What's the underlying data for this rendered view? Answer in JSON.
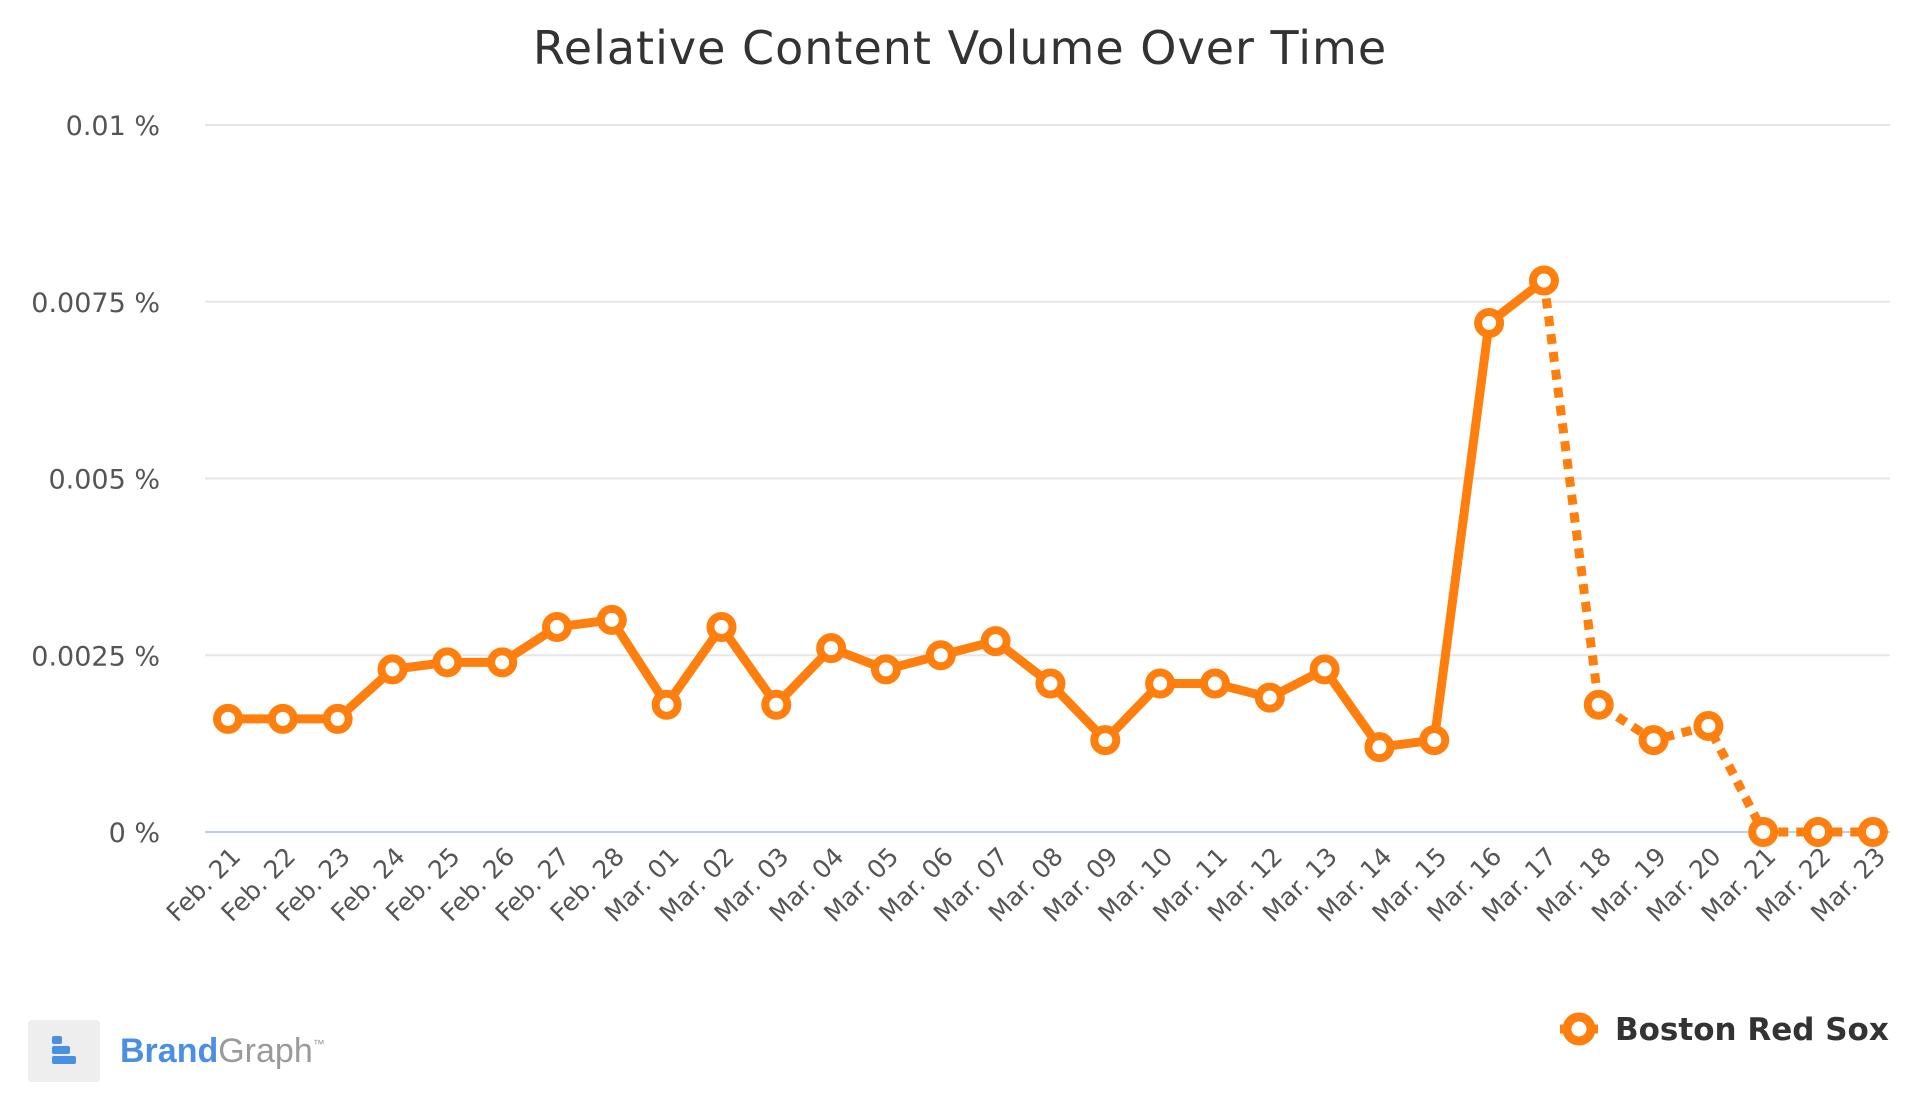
{
  "colors": {
    "series": "#ff7f0e",
    "grid": "#e6e6e6",
    "baseline": "#c0d0e0",
    "brand_blue": "#4a90e2",
    "brand_gray": "#9a9a9a"
  },
  "brand": {
    "name_part1": "Brand",
    "name_part2": "Graph",
    "trademark": "™",
    "icon": "brandgraph-logo-icon"
  },
  "chart_data": {
    "type": "line",
    "title": "Relative Content Volume Over Time",
    "xlabel": "",
    "ylabel": "",
    "ylim": [
      0,
      0.01
    ],
    "y_ticks": [
      {
        "value": 0.01,
        "label": "0.01 %"
      },
      {
        "value": 0.0075,
        "label": "0.0075 %"
      },
      {
        "value": 0.005,
        "label": "0.005 %"
      },
      {
        "value": 0.0025,
        "label": "0.0025 %"
      },
      {
        "value": 0,
        "label": "0 %"
      }
    ],
    "grid": true,
    "legend_position": "bottom-right",
    "categories": [
      "Feb. 21",
      "Feb. 22",
      "Feb. 23",
      "Feb. 24",
      "Feb. 25",
      "Feb. 26",
      "Feb. 27",
      "Feb. 28",
      "Mar. 01",
      "Mar. 02",
      "Mar. 03",
      "Mar. 04",
      "Mar. 05",
      "Mar. 06",
      "Mar. 07",
      "Mar. 08",
      "Mar. 09",
      "Mar. 10",
      "Mar. 11",
      "Mar. 12",
      "Mar. 13",
      "Mar. 14",
      "Mar. 15",
      "Mar. 16",
      "Mar. 17",
      "Mar. 18",
      "Mar. 19",
      "Mar. 20",
      "Mar. 21",
      "Mar. 22",
      "Mar. 23"
    ],
    "series": [
      {
        "name": "Boston Red Sox",
        "values": [
          0.0016,
          0.0016,
          0.0016,
          0.0023,
          0.0024,
          0.0024,
          0.0029,
          0.003,
          0.0018,
          0.0029,
          0.0018,
          0.0026,
          0.0023,
          0.0025,
          0.0027,
          0.0021,
          0.0013,
          0.0021,
          0.0021,
          0.0019,
          0.0023,
          0.0012,
          0.0013,
          0.0072,
          0.0078,
          0.0018,
          0.0013,
          0.0015,
          0,
          0,
          0
        ],
        "dashed_from_index": 24
      }
    ]
  }
}
